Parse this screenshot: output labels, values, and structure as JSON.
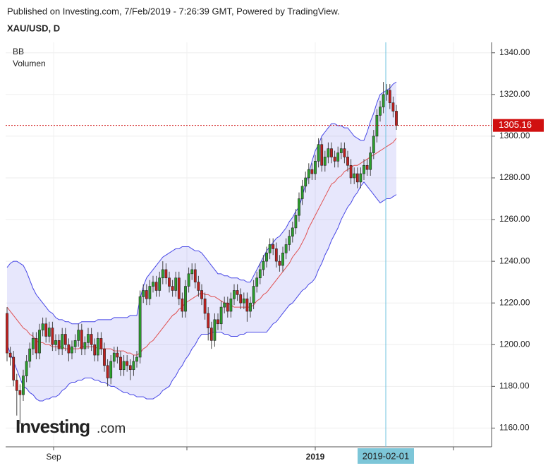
{
  "chart_data": {
    "type": "candlestick",
    "header": "Published on Investing.com, 7/Feb/2019 - 7:26:39 GMT, Powered by TradingView.",
    "title": "XAU/USD, D",
    "legend_items": [
      "BB",
      "Volumen"
    ],
    "logo": {
      "name": "Investing",
      "suffix": ".com"
    },
    "x_labels": [
      "Sep",
      "2019"
    ],
    "crosshair_label": "2019-02-01",
    "up_color": "#2ca02c",
    "down_color": "#c0211f",
    "band_color": "#4646e6",
    "middle_color": "#e05050",
    "price_line_color": "#d01010",
    "ylim": [
      1151,
      1345
    ],
    "yticks": [
      {
        "value": 1160,
        "label": "1160.00"
      },
      {
        "value": 1180,
        "label": "1180.00"
      },
      {
        "value": 1200,
        "label": "1200.00"
      },
      {
        "value": 1220,
        "label": "1220.00"
      },
      {
        "value": 1240,
        "label": "1240.00"
      },
      {
        "value": 1260,
        "label": "1260.00"
      },
      {
        "value": 1280,
        "label": "1280.00"
      },
      {
        "value": 1300,
        "label": "1300.00"
      },
      {
        "value": 1320,
        "label": "1320.00"
      },
      {
        "value": 1340,
        "label": "1340.00"
      }
    ],
    "grid": true,
    "open": [
      1215,
      1196,
      1194,
      1183,
      1178,
      1176,
      1185,
      1192,
      1198,
      1203,
      1196,
      1207,
      1210,
      1204,
      1208,
      1200,
      1202,
      1198,
      1205,
      1200,
      1196,
      1199,
      1202,
      1207,
      1198,
      1201,
      1205,
      1200,
      1195,
      1203,
      1198,
      1190,
      1184,
      1192,
      1196,
      1194,
      1188,
      1192,
      1190,
      1188,
      1192,
      1194,
      1223,
      1226,
      1222,
      1228,
      1230,
      1226,
      1232,
      1236,
      1232,
      1228,
      1226,
      1232,
      1222,
      1216,
      1228,
      1234,
      1236,
      1230,
      1226,
      1222,
      1215,
      1208,
      1202,
      1212,
      1210,
      1218,
      1220,
      1216,
      1222,
      1226,
      1224,
      1220,
      1222,
      1216,
      1220,
      1228,
      1232,
      1236,
      1240,
      1244,
      1248,
      1246,
      1240,
      1238,
      1244,
      1248,
      1252,
      1256,
      1262,
      1270,
      1276,
      1280,
      1284,
      1282,
      1288,
      1296,
      1286,
      1290,
      1294,
      1290,
      1288,
      1292,
      1294,
      1290,
      1286,
      1280,
      1282,
      1278,
      1282,
      1286,
      1284,
      1292,
      1300,
      1310,
      1314,
      1320,
      1322,
      1316,
      1312
    ],
    "high": [
      1218,
      1199,
      1197,
      1186,
      1181,
      1188,
      1195,
      1201,
      1206,
      1206,
      1210,
      1213,
      1213,
      1211,
      1211,
      1205,
      1205,
      1208,
      1208,
      1203,
      1202,
      1205,
      1210,
      1210,
      1204,
      1208,
      1208,
      1203,
      1206,
      1206,
      1201,
      1193,
      1195,
      1199,
      1199,
      1197,
      1195,
      1195,
      1193,
      1195,
      1197,
      1226,
      1229,
      1229,
      1231,
      1233,
      1233,
      1235,
      1240,
      1239,
      1235,
      1231,
      1235,
      1235,
      1225,
      1231,
      1237,
      1239,
      1239,
      1233,
      1229,
      1225,
      1218,
      1211,
      1215,
      1215,
      1221,
      1223,
      1223,
      1225,
      1229,
      1229,
      1227,
      1225,
      1225,
      1223,
      1231,
      1235,
      1239,
      1243,
      1247,
      1251,
      1251,
      1249,
      1243,
      1247,
      1251,
      1255,
      1259,
      1265,
      1273,
      1279,
      1283,
      1287,
      1287,
      1291,
      1299,
      1299,
      1293,
      1297,
      1297,
      1293,
      1295,
      1297,
      1297,
      1293,
      1289,
      1285,
      1285,
      1285,
      1289,
      1289,
      1295,
      1303,
      1313,
      1317,
      1326,
      1325,
      1325,
      1319,
      1315
    ],
    "low": [
      1192,
      1190,
      1180,
      1166,
      1162,
      1173,
      1182,
      1189,
      1195,
      1193,
      1193,
      1204,
      1201,
      1201,
      1197,
      1197,
      1195,
      1195,
      1197,
      1192,
      1193,
      1196,
      1199,
      1195,
      1195,
      1198,
      1197,
      1192,
      1192,
      1195,
      1187,
      1180,
      1181,
      1189,
      1191,
      1185,
      1185,
      1187,
      1183,
      1185,
      1189,
      1191,
      1220,
      1219,
      1219,
      1225,
      1223,
      1223,
      1229,
      1229,
      1225,
      1223,
      1223,
      1219,
      1213,
      1213,
      1225,
      1231,
      1227,
      1223,
      1219,
      1212,
      1202,
      1198,
      1199,
      1207,
      1207,
      1215,
      1213,
      1213,
      1219,
      1221,
      1217,
      1217,
      1211,
      1213,
      1217,
      1225,
      1229,
      1233,
      1237,
      1241,
      1243,
      1237,
      1235,
      1235,
      1241,
      1245,
      1249,
      1253,
      1259,
      1267,
      1273,
      1277,
      1279,
      1279,
      1285,
      1283,
      1283,
      1287,
      1287,
      1285,
      1285,
      1289,
      1287,
      1283,
      1277,
      1277,
      1275,
      1275,
      1279,
      1281,
      1281,
      1289,
      1297,
      1307,
      1311,
      1317,
      1313,
      1309,
      1303
    ],
    "close": [
      1196,
      1194,
      1183,
      1178,
      1176,
      1185,
      1192,
      1198,
      1203,
      1196,
      1207,
      1210,
      1204,
      1208,
      1200,
      1202,
      1198,
      1205,
      1200,
      1196,
      1199,
      1202,
      1207,
      1198,
      1201,
      1205,
      1200,
      1195,
      1203,
      1198,
      1190,
      1184,
      1192,
      1196,
      1194,
      1188,
      1192,
      1190,
      1188,
      1192,
      1194,
      1223,
      1226,
      1222,
      1228,
      1230,
      1226,
      1232,
      1236,
      1232,
      1228,
      1226,
      1232,
      1222,
      1216,
      1228,
      1234,
      1236,
      1230,
      1226,
      1222,
      1215,
      1208,
      1202,
      1212,
      1210,
      1218,
      1220,
      1216,
      1222,
      1226,
      1224,
      1220,
      1222,
      1216,
      1220,
      1228,
      1232,
      1236,
      1240,
      1244,
      1248,
      1246,
      1240,
      1238,
      1244,
      1248,
      1252,
      1256,
      1262,
      1270,
      1276,
      1280,
      1284,
      1282,
      1288,
      1296,
      1286,
      1290,
      1294,
      1290,
      1288,
      1292,
      1294,
      1290,
      1286,
      1280,
      1282,
      1278,
      1282,
      1286,
      1284,
      1292,
      1300,
      1310,
      1314,
      1320,
      1322,
      1316,
      1312,
      1305.16
    ],
    "bb_upper": [
      1237,
      1239,
      1240,
      1240,
      1239,
      1238,
      1235,
      1231,
      1227,
      1224,
      1222,
      1220,
      1218,
      1216,
      1215,
      1213,
      1212,
      1212,
      1211,
      1211,
      1210,
      1210,
      1210,
      1211,
      1211,
      1211,
      1211,
      1211,
      1212,
      1212,
      1212,
      1212,
      1212,
      1213,
      1213,
      1213,
      1213,
      1213,
      1214,
      1214,
      1214,
      1222,
      1228,
      1232,
      1234,
      1236,
      1238,
      1240,
      1242,
      1243,
      1244,
      1245,
      1246,
      1246,
      1247,
      1247,
      1247,
      1246,
      1245,
      1245,
      1244,
      1242,
      1240,
      1238,
      1236,
      1234,
      1234,
      1233,
      1233,
      1232,
      1232,
      1232,
      1231,
      1231,
      1230,
      1230,
      1233,
      1236,
      1239,
      1242,
      1245,
      1247,
      1249,
      1251,
      1252,
      1254,
      1256,
      1259,
      1261,
      1264,
      1266,
      1271,
      1277,
      1282,
      1288,
      1293,
      1296,
      1300,
      1302,
      1304,
      1306,
      1306,
      1305,
      1305,
      1304,
      1304,
      1302,
      1300,
      1299,
      1298,
      1298,
      1302,
      1307,
      1311,
      1316,
      1320,
      1321,
      1322,
      1323,
      1325,
      1326
    ],
    "bb_middle": [
      1218,
      1216,
      1214,
      1212,
      1210,
      1208,
      1207,
      1205,
      1204,
      1202,
      1201,
      1201,
      1200,
      1200,
      1199,
      1199,
      1199,
      1199,
      1198,
      1198,
      1198,
      1198,
      1198,
      1199,
      1199,
      1199,
      1199,
      1199,
      1198,
      1198,
      1198,
      1198,
      1198,
      1197,
      1197,
      1197,
      1197,
      1196,
      1196,
      1195,
      1195,
      1196,
      1198,
      1199,
      1201,
      1202,
      1204,
      1206,
      1208,
      1210,
      1212,
      1214,
      1215,
      1217,
      1218,
      1220,
      1221,
      1222,
      1223,
      1224,
      1225,
      1224,
      1224,
      1223,
      1223,
      1222,
      1221,
      1220,
      1220,
      1219,
      1218,
      1218,
      1218,
      1218,
      1218,
      1218,
      1219,
      1221,
      1222,
      1224,
      1225,
      1227,
      1229,
      1231,
      1233,
      1235,
      1237,
      1239,
      1242,
      1244,
      1246,
      1249,
      1252,
      1256,
      1259,
      1262,
      1265,
      1268,
      1271,
      1274,
      1277,
      1278,
      1280,
      1281,
      1283,
      1284,
      1285,
      1286,
      1286,
      1287,
      1288,
      1289,
      1290,
      1291,
      1292,
      1293,
      1294,
      1295,
      1296,
      1297,
      1299
    ],
    "bb_lower": [
      1200,
      1196,
      1192,
      1188,
      1184,
      1180,
      1179,
      1177,
      1176,
      1174,
      1173,
      1173,
      1174,
      1174,
      1175,
      1175,
      1176,
      1178,
      1179,
      1181,
      1182,
      1182,
      1183,
      1183,
      1184,
      1184,
      1184,
      1183,
      1183,
      1182,
      1182,
      1181,
      1180,
      1180,
      1179,
      1178,
      1177,
      1177,
      1176,
      1176,
      1175,
      1175,
      1175,
      1174,
      1174,
      1174,
      1175,
      1176,
      1178,
      1179,
      1180,
      1183,
      1185,
      1188,
      1190,
      1193,
      1195,
      1198,
      1200,
      1203,
      1205,
      1205,
      1205,
      1206,
      1206,
      1206,
      1206,
      1205,
      1205,
      1204,
      1204,
      1204,
      1205,
      1205,
      1206,
      1206,
      1206,
      1206,
      1206,
      1206,
      1206,
      1208,
      1210,
      1211,
      1213,
      1215,
      1217,
      1219,
      1220,
      1222,
      1224,
      1226,
      1227,
      1229,
      1230,
      1232,
      1236,
      1239,
      1243,
      1246,
      1250,
      1253,
      1256,
      1260,
      1263,
      1266,
      1268,
      1271,
      1273,
      1276,
      1278,
      1276,
      1274,
      1272,
      1270,
      1268,
      1269,
      1270,
      1270,
      1271,
      1272
    ]
  }
}
